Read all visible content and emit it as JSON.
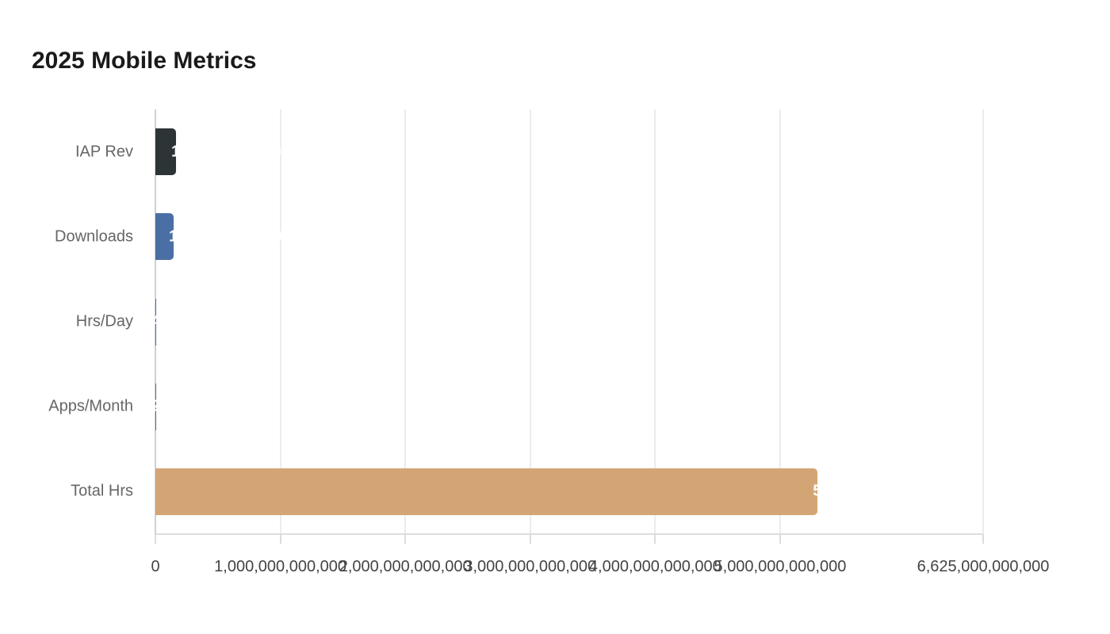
{
  "chart_data": {
    "type": "bar",
    "orientation": "horizontal",
    "title": "2025 Mobile Metrics",
    "xlabel": "",
    "ylabel": "",
    "categories": [
      "IAP Rev",
      "Downloads",
      "Hrs/Day",
      "Apps/Month",
      "Total Hrs"
    ],
    "values": [
      165000000000,
      146000000000,
      4.2,
      26,
      5300000000000
    ],
    "value_labels": [
      "165,000,000,000",
      "146,000,000,000",
      "4.2",
      "26",
      "5,300,000,000,000"
    ],
    "colors": [
      "#2d3436",
      "#4a6fa5",
      "#4a6fa5",
      "#636e72",
      "#d4a574"
    ],
    "xlim": [
      0,
      6625000000000
    ],
    "xticks": [
      "0",
      "1,000,000,000,000",
      "2,000,000,000,000",
      "3,000,000,000,000",
      "4,000,000,000,000",
      "5,000,000,000,000",
      "6,625,000,000,000"
    ],
    "xtick_values": [
      0,
      1000000000000,
      2000000000000,
      3000000000000,
      4000000000000,
      5000000000000,
      6625000000000
    ],
    "grid": true,
    "legend": null
  },
  "header": {
    "title": "2025 Mobile Metrics"
  }
}
